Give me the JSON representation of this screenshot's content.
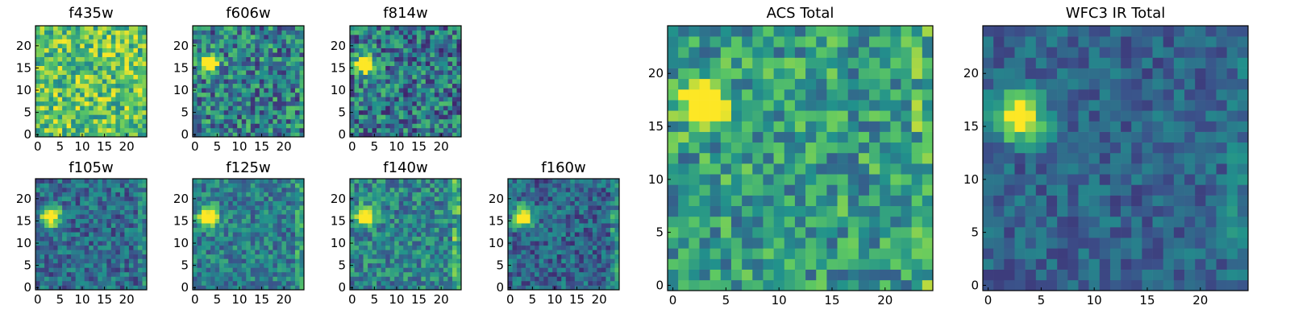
{
  "colormap": [
    "#440154",
    "#3b528b",
    "#21918c",
    "#5ec962",
    "#fde725"
  ],
  "panels": [
    {
      "title": "f435w",
      "seed": 11,
      "base": 0.72,
      "noise": 0.28,
      "source": {
        "x": 3,
        "y": 16,
        "amp": 0.0
      },
      "edge": 0.0
    },
    {
      "title": "f606w",
      "seed": 23,
      "base": 0.44,
      "noise": 0.3,
      "source": {
        "x": 3,
        "y": 16,
        "amp": 0.9
      },
      "edge": 0.0
    },
    {
      "title": "f814w",
      "seed": 37,
      "base": 0.4,
      "noise": 0.3,
      "source": {
        "x": 3,
        "y": 16,
        "amp": 0.95
      },
      "edge": 0.0
    },
    {
      "title": "f105w",
      "seed": 41,
      "base": 0.35,
      "noise": 0.2,
      "source": {
        "x": 3,
        "y": 16,
        "amp": 0.9
      },
      "edge": 0.15
    },
    {
      "title": "f125w",
      "seed": 53,
      "base": 0.42,
      "noise": 0.2,
      "source": {
        "x": 3,
        "y": 16,
        "amp": 0.9
      },
      "edge": 0.25
    },
    {
      "title": "f140w",
      "seed": 67,
      "base": 0.45,
      "noise": 0.22,
      "source": {
        "x": 3,
        "y": 16,
        "amp": 0.9
      },
      "edge": 0.25
    },
    {
      "title": "f160w",
      "seed": 71,
      "base": 0.33,
      "noise": 0.2,
      "source": {
        "x": 3,
        "y": 16,
        "amp": 0.95
      },
      "edge": 0.2
    },
    {
      "title": "ACS Total",
      "seed": 83,
      "base": 0.55,
      "noise": 0.25,
      "source": {
        "x": 3,
        "y": 17,
        "amp": 0.8
      },
      "edge": 0.15
    },
    {
      "title": "WFC3 IR Total",
      "seed": 97,
      "base": 0.32,
      "noise": 0.14,
      "source": {
        "x": 3,
        "y": 16,
        "amp": 0.9
      },
      "edge": 0.1
    }
  ],
  "chart_data": [
    {
      "type": "heatmap",
      "title": "f435w",
      "grid": [
        25,
        25
      ],
      "xlim": [
        0,
        24
      ],
      "ylim": [
        0,
        24
      ],
      "xticks": [
        0,
        5,
        10,
        15,
        20
      ],
      "yticks": [
        0,
        5,
        10,
        15,
        20
      ]
    },
    {
      "type": "heatmap",
      "title": "f606w",
      "grid": [
        25,
        25
      ],
      "xlim": [
        0,
        24
      ],
      "ylim": [
        0,
        24
      ],
      "xticks": [
        0,
        5,
        10,
        15,
        20
      ],
      "yticks": [
        0,
        5,
        10,
        15,
        20
      ]
    },
    {
      "type": "heatmap",
      "title": "f814w",
      "grid": [
        25,
        25
      ],
      "xlim": [
        0,
        24
      ],
      "ylim": [
        0,
        24
      ],
      "xticks": [
        0,
        5,
        10,
        15,
        20
      ],
      "yticks": [
        0,
        5,
        10,
        15,
        20
      ]
    },
    {
      "type": "heatmap",
      "title": "f105w",
      "grid": [
        25,
        25
      ],
      "xlim": [
        0,
        24
      ],
      "ylim": [
        0,
        24
      ],
      "xticks": [
        0,
        5,
        10,
        15,
        20
      ],
      "yticks": [
        0,
        5,
        10,
        15,
        20
      ]
    },
    {
      "type": "heatmap",
      "title": "f125w",
      "grid": [
        25,
        25
      ],
      "xlim": [
        0,
        24
      ],
      "ylim": [
        0,
        24
      ],
      "xticks": [
        0,
        5,
        10,
        15,
        20
      ],
      "yticks": [
        0,
        5,
        10,
        15,
        20
      ]
    },
    {
      "type": "heatmap",
      "title": "f140w",
      "grid": [
        25,
        25
      ],
      "xlim": [
        0,
        24
      ],
      "ylim": [
        0,
        24
      ],
      "xticks": [
        0,
        5,
        10,
        15,
        20
      ],
      "yticks": [
        0,
        5,
        10,
        15,
        20
      ]
    },
    {
      "type": "heatmap",
      "title": "f160w",
      "grid": [
        25,
        25
      ],
      "xlim": [
        0,
        24
      ],
      "ylim": [
        0,
        24
      ],
      "xticks": [
        0,
        5,
        10,
        15,
        20
      ],
      "yticks": [
        0,
        5,
        10,
        15,
        20
      ]
    },
    {
      "type": "heatmap",
      "title": "ACS Total",
      "grid": [
        25,
        25
      ],
      "xlim": [
        0,
        24
      ],
      "ylim": [
        0,
        24
      ],
      "xticks": [
        0,
        5,
        10,
        15,
        20
      ],
      "yticks": [
        0,
        5,
        10,
        15,
        20
      ]
    },
    {
      "type": "heatmap",
      "title": "WFC3 IR Total",
      "grid": [
        25,
        25
      ],
      "xlim": [
        0,
        24
      ],
      "ylim": [
        0,
        24
      ],
      "xticks": [
        0,
        5,
        10,
        15,
        20
      ],
      "yticks": [
        0,
        5,
        10,
        15,
        20
      ]
    }
  ]
}
